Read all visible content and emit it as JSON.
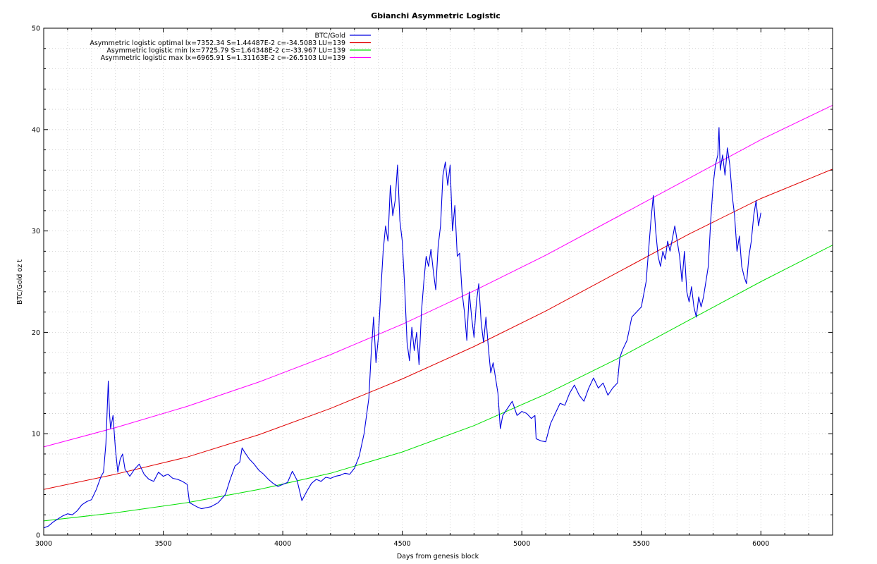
{
  "chart_data": {
    "type": "line",
    "title": "Gbianchi Asymmetric Logistic",
    "xlabel": "Days from genesis block",
    "ylabel": "BTC/Gold oz t",
    "xlim": [
      3000,
      6300
    ],
    "ylim": [
      0,
      50
    ],
    "x_ticks": [
      3000,
      3500,
      4000,
      4500,
      5000,
      5500,
      6000
    ],
    "y_ticks": [
      0,
      10,
      20,
      30,
      40,
      50
    ],
    "grid": true,
    "legend_position": "top-right",
    "series": [
      {
        "name": "BTC/Gold",
        "color": "#0000e0",
        "points": [
          [
            3000,
            0.7
          ],
          [
            3020,
            0.9
          ],
          [
            3040,
            1.3
          ],
          [
            3060,
            1.6
          ],
          [
            3080,
            1.9
          ],
          [
            3100,
            2.1
          ],
          [
            3120,
            2.0
          ],
          [
            3140,
            2.4
          ],
          [
            3160,
            3.0
          ],
          [
            3180,
            3.3
          ],
          [
            3200,
            3.5
          ],
          [
            3220,
            4.5
          ],
          [
            3240,
            5.8
          ],
          [
            3250,
            6.2
          ],
          [
            3260,
            9.0
          ],
          [
            3270,
            15.2
          ],
          [
            3275,
            12.0
          ],
          [
            3280,
            10.5
          ],
          [
            3290,
            11.8
          ],
          [
            3300,
            8.5
          ],
          [
            3310,
            6.2
          ],
          [
            3320,
            7.5
          ],
          [
            3330,
            8.0
          ],
          [
            3340,
            6.5
          ],
          [
            3360,
            5.8
          ],
          [
            3380,
            6.5
          ],
          [
            3400,
            7.0
          ],
          [
            3420,
            6.0
          ],
          [
            3440,
            5.5
          ],
          [
            3460,
            5.3
          ],
          [
            3480,
            6.2
          ],
          [
            3500,
            5.8
          ],
          [
            3520,
            6.0
          ],
          [
            3540,
            5.6
          ],
          [
            3560,
            5.5
          ],
          [
            3580,
            5.3
          ],
          [
            3600,
            5.0
          ],
          [
            3610,
            3.2
          ],
          [
            3640,
            2.8
          ],
          [
            3660,
            2.6
          ],
          [
            3700,
            2.8
          ],
          [
            3730,
            3.2
          ],
          [
            3760,
            4.0
          ],
          [
            3780,
            5.5
          ],
          [
            3800,
            6.8
          ],
          [
            3820,
            7.2
          ],
          [
            3830,
            8.6
          ],
          [
            3840,
            8.2
          ],
          [
            3860,
            7.5
          ],
          [
            3880,
            7.0
          ],
          [
            3900,
            6.4
          ],
          [
            3920,
            6.0
          ],
          [
            3940,
            5.5
          ],
          [
            3960,
            5.1
          ],
          [
            3980,
            4.8
          ],
          [
            4000,
            5.0
          ],
          [
            4020,
            5.2
          ],
          [
            4040,
            6.3
          ],
          [
            4060,
            5.4
          ],
          [
            4080,
            3.4
          ],
          [
            4100,
            4.3
          ],
          [
            4120,
            5.1
          ],
          [
            4140,
            5.5
          ],
          [
            4160,
            5.3
          ],
          [
            4180,
            5.7
          ],
          [
            4200,
            5.6
          ],
          [
            4220,
            5.8
          ],
          [
            4240,
            5.9
          ],
          [
            4260,
            6.1
          ],
          [
            4280,
            6.0
          ],
          [
            4300,
            6.6
          ],
          [
            4320,
            7.8
          ],
          [
            4340,
            10.0
          ],
          [
            4360,
            13.5
          ],
          [
            4370,
            18.0
          ],
          [
            4380,
            21.5
          ],
          [
            4390,
            17.0
          ],
          [
            4400,
            19.5
          ],
          [
            4410,
            24.0
          ],
          [
            4420,
            28.0
          ],
          [
            4430,
            30.5
          ],
          [
            4440,
            29.0
          ],
          [
            4450,
            34.5
          ],
          [
            4460,
            31.5
          ],
          [
            4470,
            33.0
          ],
          [
            4480,
            36.5
          ],
          [
            4490,
            31.0
          ],
          [
            4500,
            29.0
          ],
          [
            4510,
            24.5
          ],
          [
            4520,
            19.0
          ],
          [
            4530,
            17.2
          ],
          [
            4540,
            20.5
          ],
          [
            4550,
            18.2
          ],
          [
            4560,
            20.0
          ],
          [
            4570,
            16.8
          ],
          [
            4580,
            22.0
          ],
          [
            4590,
            25.0
          ],
          [
            4600,
            27.5
          ],
          [
            4610,
            26.5
          ],
          [
            4620,
            28.2
          ],
          [
            4630,
            26.0
          ],
          [
            4640,
            24.2
          ],
          [
            4650,
            28.5
          ],
          [
            4660,
            30.5
          ],
          [
            4670,
            35.5
          ],
          [
            4680,
            36.8
          ],
          [
            4690,
            34.5
          ],
          [
            4700,
            36.5
          ],
          [
            4710,
            30.0
          ],
          [
            4720,
            32.5
          ],
          [
            4730,
            27.5
          ],
          [
            4740,
            27.8
          ],
          [
            4750,
            24.0
          ],
          [
            4760,
            22.0
          ],
          [
            4770,
            19.2
          ],
          [
            4780,
            24.0
          ],
          [
            4790,
            21.5
          ],
          [
            4800,
            19.5
          ],
          [
            4810,
            23.0
          ],
          [
            4820,
            24.8
          ],
          [
            4830,
            21.0
          ],
          [
            4840,
            19.0
          ],
          [
            4850,
            21.5
          ],
          [
            4860,
            18.5
          ],
          [
            4870,
            16.0
          ],
          [
            4880,
            17.0
          ],
          [
            4890,
            15.5
          ],
          [
            4900,
            14.0
          ],
          [
            4910,
            10.5
          ],
          [
            4920,
            11.8
          ],
          [
            4940,
            12.5
          ],
          [
            4960,
            13.2
          ],
          [
            4980,
            11.8
          ],
          [
            5000,
            12.2
          ],
          [
            5020,
            12.0
          ],
          [
            5040,
            11.5
          ],
          [
            5055,
            11.8
          ],
          [
            5060,
            9.5
          ],
          [
            5080,
            9.3
          ],
          [
            5100,
            9.2
          ],
          [
            5120,
            11.0
          ],
          [
            5140,
            12.0
          ],
          [
            5160,
            13.0
          ],
          [
            5180,
            12.8
          ],
          [
            5200,
            14.0
          ],
          [
            5220,
            14.8
          ],
          [
            5240,
            13.8
          ],
          [
            5260,
            13.2
          ],
          [
            5280,
            14.5
          ],
          [
            5300,
            15.5
          ],
          [
            5320,
            14.5
          ],
          [
            5340,
            15.0
          ],
          [
            5360,
            13.8
          ],
          [
            5380,
            14.5
          ],
          [
            5400,
            15.0
          ],
          [
            5410,
            17.5
          ],
          [
            5420,
            18.2
          ],
          [
            5440,
            19.2
          ],
          [
            5460,
            21.5
          ],
          [
            5480,
            22.0
          ],
          [
            5500,
            22.5
          ],
          [
            5520,
            25.0
          ],
          [
            5530,
            28.0
          ],
          [
            5540,
            31.0
          ],
          [
            5550,
            33.5
          ],
          [
            5560,
            30.0
          ],
          [
            5570,
            27.5
          ],
          [
            5580,
            26.5
          ],
          [
            5590,
            28.0
          ],
          [
            5600,
            27.2
          ],
          [
            5610,
            29.0
          ],
          [
            5620,
            28.0
          ],
          [
            5640,
            30.5
          ],
          [
            5650,
            29.0
          ],
          [
            5660,
            27.5
          ],
          [
            5670,
            25.0
          ],
          [
            5680,
            28.0
          ],
          [
            5690,
            24.0
          ],
          [
            5700,
            23.0
          ],
          [
            5710,
            24.5
          ],
          [
            5720,
            22.5
          ],
          [
            5730,
            21.5
          ],
          [
            5740,
            23.5
          ],
          [
            5750,
            22.5
          ],
          [
            5760,
            23.5
          ],
          [
            5770,
            25.0
          ],
          [
            5780,
            26.5
          ],
          [
            5790,
            31.0
          ],
          [
            5800,
            34.5
          ],
          [
            5810,
            36.5
          ],
          [
            5820,
            37.5
          ],
          [
            5825,
            40.2
          ],
          [
            5830,
            36.0
          ],
          [
            5840,
            37.5
          ],
          [
            5850,
            35.5
          ],
          [
            5860,
            38.2
          ],
          [
            5870,
            36.5
          ],
          [
            5880,
            33.5
          ],
          [
            5890,
            31.5
          ],
          [
            5900,
            28.0
          ],
          [
            5910,
            29.5
          ],
          [
            5920,
            26.5
          ],
          [
            5930,
            25.5
          ],
          [
            5940,
            24.8
          ],
          [
            5950,
            27.5
          ],
          [
            5960,
            29.0
          ],
          [
            5970,
            31.5
          ],
          [
            5980,
            33.0
          ],
          [
            5990,
            30.5
          ],
          [
            6000,
            31.8
          ]
        ]
      },
      {
        "name": "Asymmetric logistic optimal lx=7352.34 S=1.44487E-2 c=-34.5083 LU=139",
        "color": "#e00000",
        "points": [
          [
            3000,
            4.5
          ],
          [
            3300,
            6.0
          ],
          [
            3600,
            7.7
          ],
          [
            3900,
            9.9
          ],
          [
            4200,
            12.5
          ],
          [
            4500,
            15.4
          ],
          [
            4800,
            18.6
          ],
          [
            5100,
            22.1
          ],
          [
            5400,
            25.9
          ],
          [
            5700,
            29.7
          ],
          [
            6000,
            33.2
          ],
          [
            6300,
            36.1
          ]
        ]
      },
      {
        "name": "Asymmetric logistic min lx=7725.79 S=1.64348E-2 c=-33.967 LU=139",
        "color": "#00e000",
        "points": [
          [
            3000,
            1.4
          ],
          [
            3300,
            2.2
          ],
          [
            3600,
            3.2
          ],
          [
            3900,
            4.5
          ],
          [
            4200,
            6.1
          ],
          [
            4500,
            8.2
          ],
          [
            4800,
            10.8
          ],
          [
            5100,
            13.9
          ],
          [
            5400,
            17.4
          ],
          [
            5700,
            21.2
          ],
          [
            6000,
            25.0
          ],
          [
            6300,
            28.6
          ]
        ]
      },
      {
        "name": "Asymmetric logistic max lx=6965.91 S=1.31163E-2 c=-26.5103 LU=139",
        "color": "#ff00ff",
        "points": [
          [
            3000,
            8.7
          ],
          [
            3300,
            10.6
          ],
          [
            3600,
            12.7
          ],
          [
            3900,
            15.1
          ],
          [
            4200,
            17.8
          ],
          [
            4500,
            20.8
          ],
          [
            4800,
            24.1
          ],
          [
            5100,
            27.6
          ],
          [
            5400,
            31.4
          ],
          [
            5700,
            35.2
          ],
          [
            6000,
            39.0
          ],
          [
            6300,
            42.4
          ]
        ]
      }
    ]
  }
}
